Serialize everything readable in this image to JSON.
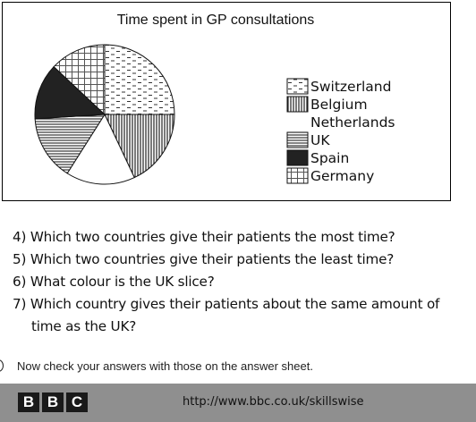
{
  "chart_data": {
    "type": "pie",
    "title": "Time spent in GP consultations",
    "slices": [
      {
        "label": "Switzerland",
        "percent": 25,
        "pattern": "dashes"
      },
      {
        "label": "Belgium",
        "percent": 18,
        "pattern": "vertical-lines"
      },
      {
        "label": "Netherlands",
        "percent": 16,
        "pattern": "none"
      },
      {
        "label": "UK",
        "percent": 15,
        "pattern": "horizontal-lines"
      },
      {
        "label": "Spain",
        "percent": 13,
        "pattern": "solid"
      },
      {
        "label": "Germany",
        "percent": 13,
        "pattern": "grid"
      }
    ],
    "start_angle_deg": 0,
    "direction": "clockwise",
    "legend_position": "right"
  },
  "questions": [
    {
      "number": "4)",
      "text": "Which two countries give their patients the most time?"
    },
    {
      "number": "5)",
      "text": "Which two countries give their patients the least time?"
    },
    {
      "number": "6)",
      "text": "What colour is the UK slice?"
    },
    {
      "number": "7)",
      "text": "Which country gives their patients about the same amount of",
      "continuation": "time as the UK?"
    }
  ],
  "instruction": "Now check your answers with those on the answer sheet.",
  "footer": {
    "logo_letters": [
      "B",
      "B",
      "C"
    ],
    "url": "http://www.bbc.co.uk/skillswise",
    "background": "#8f8f8f"
  }
}
